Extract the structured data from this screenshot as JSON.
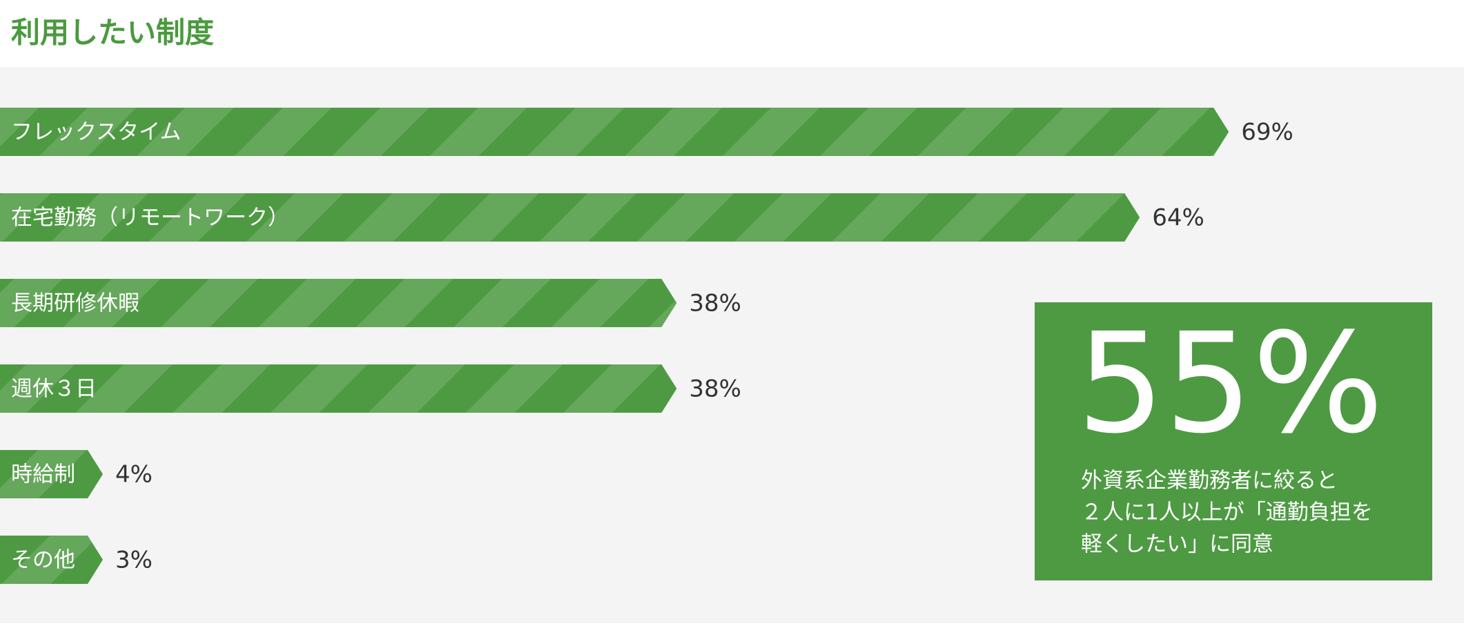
{
  "chart_data": {
    "type": "bar",
    "title": "利用したい制度",
    "categories": [
      "フレックスタイム",
      "在宅勤務（リモートワーク）",
      "長期研修休暇",
      "週休３日",
      "時給制",
      "その他"
    ],
    "values": [
      69,
      64,
      38,
      38,
      4,
      3
    ],
    "value_labels": [
      "69%",
      "64%",
      "38%",
      "38%",
      "4%",
      "3%"
    ],
    "color": "#4e9a43"
  },
  "callout": {
    "headline": "55%",
    "lines": [
      "外資系企業勤務者に絞ると",
      "２人に1人以上が「通勤負担を",
      "軽くしたい」に同意"
    ]
  }
}
